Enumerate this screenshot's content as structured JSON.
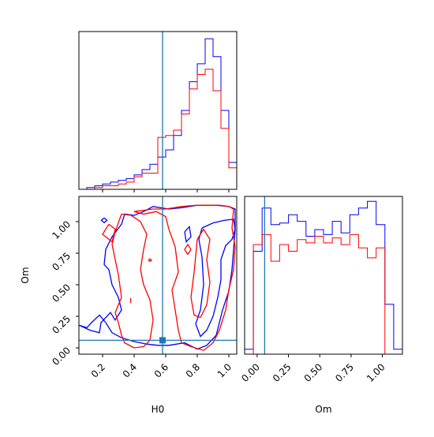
{
  "colors": {
    "blue": "#0000ff",
    "red": "#ff0000",
    "truth": "#1f77b4"
  },
  "chart_data": [
    {
      "type": "histogram",
      "panel": "H0 marginal",
      "bin_edges": [
        0.05,
        0.1,
        0.15,
        0.2,
        0.25,
        0.3,
        0.35,
        0.4,
        0.45,
        0.5,
        0.55,
        0.6,
        0.65,
        0.7,
        0.75,
        0.8,
        0.85,
        0.9,
        0.95,
        1.0,
        1.05
      ],
      "series": [
        {
          "color": "blue",
          "counts": [
            0.0,
            0.01,
            0.02,
            0.03,
            0.04,
            0.05,
            0.06,
            0.08,
            0.11,
            0.14,
            0.18,
            0.22,
            0.3,
            0.44,
            0.6,
            0.7,
            0.84,
            0.74,
            0.44,
            0.15
          ]
        },
        {
          "color": "red",
          "counts": [
            0.0,
            0.0,
            0.01,
            0.02,
            0.02,
            0.03,
            0.04,
            0.07,
            0.09,
            0.09,
            0.29,
            0.3,
            0.33,
            0.42,
            0.56,
            0.64,
            0.67,
            0.55,
            0.34,
            0.12
          ]
        }
      ],
      "truth": 0.58,
      "xlim": [
        0.05,
        1.05
      ]
    },
    {
      "type": "contour",
      "panel": "Om vs H0",
      "xlabel": "H0",
      "ylabel": "Om",
      "xlim": [
        0.05,
        1.05
      ],
      "ylim": [
        -0.05,
        1.2
      ],
      "xticks": [
        "0.2",
        "0.4",
        "0.6",
        "0.8",
        "1.0"
      ],
      "xtick_values": [
        0.2,
        0.4,
        0.6,
        0.8,
        1.0
      ],
      "yticks": [
        "0.00",
        "0.25",
        "0.50",
        "0.75",
        "1.00"
      ],
      "ytick_values": [
        0.0,
        0.25,
        0.5,
        0.75,
        1.0
      ],
      "truth": [
        0.58,
        0.06
      ],
      "contours": [
        {
          "color": "blue",
          "points": [
            [
              0.05,
              0.18
            ],
            [
              0.12,
              0.14
            ],
            [
              0.18,
              0.12
            ],
            [
              0.19,
              0.2
            ],
            [
              0.25,
              0.28
            ],
            [
              0.28,
              0.22
            ],
            [
              0.32,
              0.3
            ],
            [
              0.3,
              0.4
            ],
            [
              0.26,
              0.5
            ],
            [
              0.24,
              0.62
            ],
            [
              0.21,
              0.66
            ],
            [
              0.22,
              0.78
            ],
            [
              0.26,
              0.88
            ],
            [
              0.32,
              0.98
            ],
            [
              0.34,
              1.06
            ],
            [
              0.4,
              1.05
            ],
            [
              0.46,
              1.08
            ],
            [
              0.52,
              1.12
            ],
            [
              0.62,
              1.1
            ],
            [
              0.7,
              1.11
            ],
            [
              0.8,
              1.13
            ],
            [
              0.92,
              1.13
            ],
            [
              1.0,
              1.12
            ],
            [
              1.04,
              1.1
            ],
            [
              1.04,
              0.94
            ],
            [
              1.02,
              0.62
            ],
            [
              1.0,
              0.45
            ],
            [
              0.96,
              0.3
            ],
            [
              0.92,
              0.1
            ],
            [
              0.86,
              0.02
            ],
            [
              0.8,
              -0.01
            ],
            [
              0.72,
              0.04
            ],
            [
              0.62,
              0.02
            ],
            [
              0.55,
              0.02
            ],
            [
              0.48,
              0.03
            ],
            [
              0.4,
              0.05
            ],
            [
              0.32,
              0.08
            ],
            [
              0.26,
              0.12
            ],
            [
              0.22,
              0.2
            ],
            [
              0.18,
              0.26
            ],
            [
              0.13,
              0.2
            ],
            [
              0.1,
              0.16
            ],
            [
              0.05,
              0.18
            ]
          ]
        },
        {
          "color": "blue",
          "points": [
            [
              0.83,
              0.95
            ],
            [
              0.9,
              0.99
            ],
            [
              0.97,
              1.01
            ],
            [
              1.03,
              1.02
            ],
            [
              1.04,
              0.94
            ],
            [
              1.02,
              0.86
            ],
            [
              0.98,
              0.81
            ],
            [
              0.95,
              0.7
            ],
            [
              0.95,
              0.54
            ],
            [
              0.93,
              0.4
            ],
            [
              0.9,
              0.25
            ],
            [
              0.86,
              0.14
            ],
            [
              0.82,
              0.09
            ],
            [
              0.79,
              0.19
            ],
            [
              0.82,
              0.3
            ],
            [
              0.84,
              0.5
            ],
            [
              0.83,
              0.72
            ],
            [
              0.81,
              0.86
            ],
            [
              0.83,
              0.95
            ]
          ]
        },
        {
          "color": "blue",
          "points": [
            [
              0.21,
              1.03
            ],
            [
              0.228,
              1.011
            ],
            [
              0.21,
              0.992
            ],
            [
              0.192,
              1.011
            ],
            [
              0.21,
              1.03
            ]
          ]
        },
        {
          "color": "blue",
          "points": [
            [
              0.72,
              0.92
            ],
            [
              0.75,
              0.96
            ],
            [
              0.76,
              0.88
            ],
            [
              0.73,
              0.84
            ],
            [
              0.72,
              0.92
            ]
          ]
        },
        {
          "color": "red",
          "points": [
            [
              0.32,
              1.06
            ],
            [
              0.28,
              0.92
            ],
            [
              0.26,
              0.82
            ],
            [
              0.28,
              0.7
            ],
            [
              0.3,
              0.58
            ],
            [
              0.32,
              0.4
            ],
            [
              0.28,
              0.28
            ],
            [
              0.3,
              0.2
            ],
            [
              0.32,
              0.1
            ],
            [
              0.34,
              0.04
            ],
            [
              0.4,
              0.0
            ],
            [
              0.46,
              0.01
            ],
            [
              0.5,
              0.06
            ],
            [
              0.52,
              0.22
            ],
            [
              0.5,
              0.38
            ],
            [
              0.46,
              0.5
            ],
            [
              0.44,
              0.62
            ],
            [
              0.46,
              0.78
            ],
            [
              0.48,
              0.9
            ],
            [
              0.44,
              1.0
            ],
            [
              0.38,
              1.05
            ],
            [
              0.32,
              1.06
            ]
          ]
        },
        {
          "color": "red",
          "points": [
            [
              0.4,
              1.08
            ],
            [
              0.52,
              1.1
            ],
            [
              0.6,
              1.1
            ],
            [
              0.7,
              1.12
            ],
            [
              0.8,
              1.13
            ],
            [
              0.94,
              1.13
            ],
            [
              1.0,
              1.12
            ],
            [
              1.03,
              1.1
            ],
            [
              1.02,
              0.95
            ],
            [
              1.04,
              0.8
            ],
            [
              1.03,
              0.62
            ],
            [
              1.0,
              0.46
            ],
            [
              0.98,
              0.3
            ],
            [
              0.94,
              0.14
            ],
            [
              0.9,
              0.04
            ],
            [
              0.84,
              -0.02
            ],
            [
              0.76,
              0.01
            ],
            [
              0.7,
              0.04
            ],
            [
              0.68,
              0.14
            ],
            [
              0.66,
              0.3
            ],
            [
              0.64,
              0.46
            ],
            [
              0.68,
              0.6
            ],
            [
              0.66,
              0.8
            ],
            [
              0.62,
              0.94
            ],
            [
              0.6,
              1.04
            ],
            [
              0.54,
              1.08
            ],
            [
              0.46,
              1.06
            ],
            [
              0.4,
              1.08
            ]
          ]
        },
        {
          "color": "red",
          "points": [
            [
              0.24,
              0.98
            ],
            [
              0.2,
              0.9
            ],
            [
              0.26,
              0.84
            ],
            [
              0.28,
              0.94
            ],
            [
              0.24,
              0.98
            ]
          ]
        },
        {
          "color": "red",
          "points": [
            [
              0.82,
              0.24
            ],
            [
              0.86,
              0.34
            ],
            [
              0.88,
              0.52
            ],
            [
              0.86,
              0.7
            ],
            [
              0.88,
              0.86
            ],
            [
              0.84,
              0.94
            ],
            [
              0.8,
              0.86
            ],
            [
              0.78,
              0.6
            ],
            [
              0.76,
              0.4
            ],
            [
              0.78,
              0.26
            ],
            [
              0.82,
              0.24
            ]
          ]
        },
        {
          "color": "red",
          "points": [
            [
              0.74,
              0.74
            ],
            [
              0.76,
              0.78
            ],
            [
              0.74,
              0.82
            ],
            [
              0.72,
              0.78
            ],
            [
              0.74,
              0.74
            ]
          ]
        },
        {
          "color": "red",
          "points": [
            [
              0.49,
              0.695
            ],
            [
              0.5,
              0.705
            ],
            [
              0.51,
              0.695
            ],
            [
              0.5,
              0.685
            ],
            [
              0.49,
              0.695
            ]
          ]
        },
        {
          "color": "red",
          "points": [
            [
              0.378,
              0.355
            ],
            [
              0.378,
              0.395
            ]
          ]
        }
      ]
    },
    {
      "type": "histogram",
      "panel": "Om marginal",
      "xlabel": "Om",
      "bin_edges": [
        -0.1,
        -0.03,
        0.04,
        0.11,
        0.18,
        0.25,
        0.32,
        0.39,
        0.46,
        0.53,
        0.6,
        0.67,
        0.74,
        0.81,
        0.88,
        0.95,
        1.02,
        1.09,
        1.16
      ],
      "series": [
        {
          "color": "blue",
          "counts": [
            0.03,
            0.62,
            0.88,
            0.78,
            0.79,
            0.84,
            0.8,
            0.71,
            0.75,
            0.72,
            0.8,
            0.73,
            0.84,
            0.88,
            0.92,
            0.78,
            0.3,
            0.03
          ]
        },
        {
          "color": "red",
          "counts": [
            0.0,
            0.66,
            0.72,
            0.56,
            0.66,
            0.62,
            0.69,
            0.67,
            0.71,
            0.67,
            0.7,
            0.66,
            0.72,
            0.64,
            0.58,
            0.64,
            0.0,
            0.0
          ]
        }
      ],
      "truth": 0.06,
      "xlim": [
        -0.1,
        1.16
      ],
      "xticks": [
        "0.00",
        "0.25",
        "0.50",
        "0.75",
        "1.00"
      ],
      "xtick_values": [
        0.0,
        0.25,
        0.5,
        0.75,
        1.0
      ]
    }
  ]
}
